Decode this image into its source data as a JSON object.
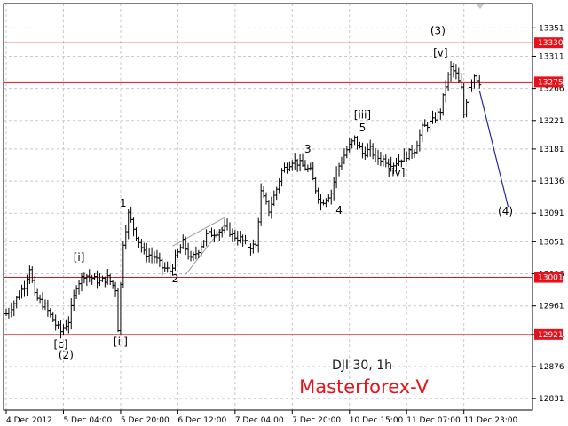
{
  "chart_data": {
    "type": "ohlc",
    "symbol_label": "DJI 30, 1h",
    "brand": "Masterforex-V",
    "colors": {
      "bars": "#000000",
      "levels": "#e8101a",
      "projection": "#2626a0",
      "grid": "#c8c8c8",
      "triangle": "#9a9a9a"
    },
    "y_axis": {
      "range": [
        12815,
        13385
      ],
      "ticks": [
        13351,
        13311,
        13266,
        13221,
        13181,
        13136,
        13091,
        13051,
        13006,
        12961,
        12921,
        12876,
        12831
      ]
    },
    "x_axis": {
      "range": [
        0,
        200
      ],
      "ticks": [
        {
          "x": 0,
          "label": "4 Dec 2012"
        },
        {
          "x": 22,
          "label": "5 Dec 04:00"
        },
        {
          "x": 44,
          "label": "5 Dec 20:00"
        },
        {
          "x": 66,
          "label": "6 Dec 12:00"
        },
        {
          "x": 88,
          "label": "7 Dec 04:00"
        },
        {
          "x": 110,
          "label": "7 Dec 20:00"
        },
        {
          "x": 132,
          "label": "10 Dec 15:00"
        },
        {
          "x": 154,
          "label": "11 Dec 07:00"
        },
        {
          "x": 176,
          "label": "11 Dec 23:00"
        }
      ]
    },
    "levels": [
      {
        "value": 13330,
        "label": "13330"
      },
      {
        "value": 13275,
        "label": "13275"
      },
      {
        "value": 13001,
        "label": "13001"
      },
      {
        "value": 12921,
        "label": "12921"
      }
    ],
    "waypoints": [
      [
        0,
        12950
      ],
      [
        3,
        12965
      ],
      [
        7,
        12990
      ],
      [
        9,
        13015
      ],
      [
        11,
        12975
      ],
      [
        15,
        12960
      ],
      [
        19,
        12935
      ],
      [
        21,
        12925
      ],
      [
        24,
        12940
      ],
      [
        27,
        12990
      ],
      [
        30,
        13005
      ],
      [
        33,
        13000
      ],
      [
        36,
        12995
      ],
      [
        39,
        13000
      ],
      [
        42,
        12985
      ],
      [
        43,
        12930
      ],
      [
        45,
        13050
      ],
      [
        47,
        13090
      ],
      [
        50,
        13060
      ],
      [
        53,
        13035
      ],
      [
        57,
        13030
      ],
      [
        60,
        13015
      ],
      [
        63,
        13010
      ],
      [
        66,
        13035
      ],
      [
        68,
        13050
      ],
      [
        71,
        13025
      ],
      [
        74,
        13040
      ],
      [
        77,
        13060
      ],
      [
        81,
        13065
      ],
      [
        85,
        13070
      ],
      [
        87,
        13060
      ],
      [
        90,
        13055
      ],
      [
        93,
        13045
      ],
      [
        96,
        13045
      ],
      [
        98,
        13120
      ],
      [
        101,
        13095
      ],
      [
        104,
        13125
      ],
      [
        106,
        13150
      ],
      [
        110,
        13165
      ],
      [
        113,
        13160
      ],
      [
        117,
        13150
      ],
      [
        119,
        13125
      ],
      [
        121,
        13105
      ],
      [
        125,
        13120
      ],
      [
        127,
        13150
      ],
      [
        131,
        13180
      ],
      [
        134,
        13195
      ],
      [
        137,
        13175
      ],
      [
        140,
        13180
      ],
      [
        142,
        13170
      ],
      [
        146,
        13165
      ],
      [
        149,
        13160
      ],
      [
        152,
        13168
      ],
      [
        155,
        13175
      ],
      [
        157,
        13180
      ],
      [
        160,
        13210
      ],
      [
        164,
        13220
      ],
      [
        167,
        13235
      ],
      [
        169,
        13270
      ],
      [
        171,
        13295
      ],
      [
        173,
        13285
      ],
      [
        175,
        13265
      ],
      [
        176,
        13230
      ],
      [
        178,
        13270
      ],
      [
        180,
        13285
      ],
      [
        182,
        13275
      ]
    ],
    "triangle": {
      "upper": [
        [
          64,
          13045
        ],
        [
          84,
          13085
        ]
      ],
      "lower": [
        [
          69,
          13005
        ],
        [
          84,
          13075
        ]
      ]
    },
    "projection": [
      [
        182,
        13263
      ],
      [
        193,
        13100
      ]
    ],
    "wave_labels": [
      {
        "text": "[c]",
        "x": 21,
        "y": 12902
      },
      {
        "text": "(2)",
        "x": 23,
        "y": 12887
      },
      {
        "text": "[i]",
        "x": 28,
        "y": 13024
      },
      {
        "text": "[ii]",
        "x": 44,
        "y": 12906
      },
      {
        "text": "1",
        "x": 45,
        "y": 13100
      },
      {
        "text": "2",
        "x": 65,
        "y": 12994
      },
      {
        "text": "3",
        "x": 116,
        "y": 13176
      },
      {
        "text": "4",
        "x": 128,
        "y": 13090
      },
      {
        "text": "[iii]",
        "x": 137,
        "y": 13224
      },
      {
        "text": "5",
        "x": 137,
        "y": 13206
      },
      {
        "text": "[iv]",
        "x": 150,
        "y": 13143
      },
      {
        "text": "(3)",
        "x": 166,
        "y": 13342
      },
      {
        "text": "[v]",
        "x": 167,
        "y": 13311
      },
      {
        "text": "(4)",
        "x": 192,
        "y": 13089
      }
    ]
  }
}
